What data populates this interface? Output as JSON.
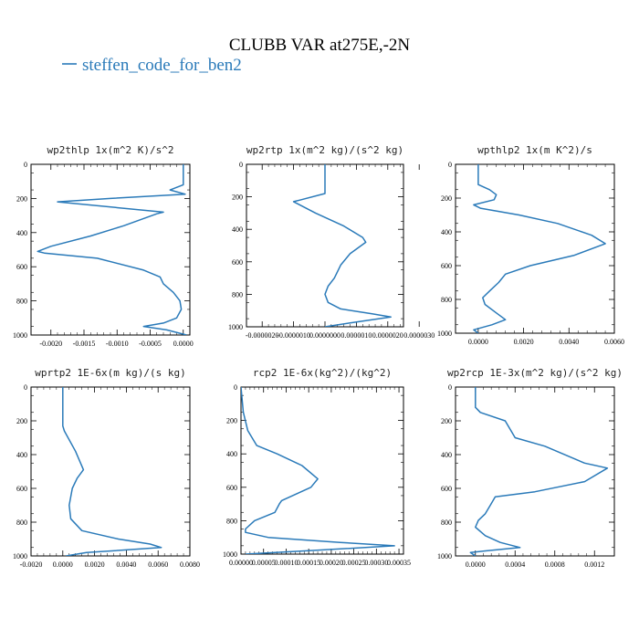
{
  "header": {
    "title": "CLUBB VAR at275E,-2N",
    "legend_label": "steffen_code_for_ben2",
    "legend_color": "#2a7ab9"
  },
  "style": {
    "line_color": "#2a7ab9",
    "axis_color": "#000000"
  },
  "chart_data": [
    {
      "type": "line",
      "title": "wp2thlp  1x(m^2 K)/s^2",
      "xlim": [
        -0.0023,
        0.0001
      ],
      "ylim": [
        1000,
        0
      ],
      "xticks": [
        -0.002,
        -0.0015,
        -0.001,
        -0.0005,
        0
      ],
      "xtick_labels": [
        "-0.0020",
        "-0.0015",
        "-0.0010",
        "-0.0005",
        "0.0000"
      ],
      "yticks": [
        0,
        200,
        400,
        600,
        800,
        1000
      ],
      "series": [
        {
          "x": [
            0,
            0,
            -0.0002,
            3e-05,
            -0.0011,
            -0.0019,
            -0.0003,
            -0.0004,
            -0.0009,
            -0.0014,
            -0.002,
            -0.0022,
            -0.0021,
            -0.0013,
            -0.0006,
            -0.00035,
            -0.0003,
            -0.00015,
            -5e-05,
            -3e-05,
            -0.0001,
            -0.0003,
            -0.0006,
            -0.00025,
            5e-05
          ],
          "y": [
            0,
            120,
            150,
            175,
            200,
            220,
            280,
            290,
            360,
            420,
            480,
            510,
            520,
            550,
            620,
            660,
            700,
            750,
            800,
            850,
            900,
            930,
            950,
            970,
            1000
          ]
        }
      ]
    },
    {
      "type": "line",
      "title": "wp2rtp  1x(m^2 kg)/(s^2 kg)",
      "xlim": [
        -2.5e-06,
        2.5e-06
      ],
      "ylim": [
        1000,
        0
      ],
      "xticks": [
        -2e-06,
        -1e-06,
        0,
        1e-06,
        2e-06,
        3e-06
      ],
      "xtick_labels": [
        "-0.0000020",
        "-0.0000010",
        "0.0000000",
        "0.0000010",
        "0.0000020",
        "0.0000030"
      ],
      "yticks": [
        0,
        200,
        400,
        600,
        800,
        1000
      ],
      "series": [
        {
          "x": [
            0,
            0,
            -8e-07,
            -1e-06,
            -3e-07,
            6e-07,
            1.2e-06,
            1.3e-06,
            8e-07,
            5e-07,
            3e-07,
            1e-07,
            0,
            1e-07,
            5e-07,
            1.5e-06,
            2.1e-06,
            1e-06,
            0
          ],
          "y": [
            0,
            180,
            220,
            230,
            300,
            380,
            450,
            480,
            550,
            620,
            700,
            750,
            800,
            850,
            890,
            920,
            940,
            970,
            1000
          ]
        }
      ]
    },
    {
      "type": "line",
      "title": "wpthlp2  1x(m K^2)/s",
      "xlim": [
        -0.001,
        0.006
      ],
      "ylim": [
        1000,
        0
      ],
      "xticks": [
        0,
        0.002,
        0.004,
        0.006
      ],
      "xtick_labels": [
        "0.0000",
        "0.0020",
        "0.0040",
        "0.0060"
      ],
      "yticks": [
        0,
        200,
        400,
        600,
        800,
        1000
      ],
      "series": [
        {
          "x": [
            0,
            0,
            0.0005,
            0.0008,
            0.0007,
            -0.0002,
            0.0001,
            0.0018,
            0.0035,
            0.005,
            0.0056,
            0.0042,
            0.0023,
            0.0012,
            0.0009,
            0.0005,
            0.0002,
            0.0003,
            0.0008,
            0.0012,
            0.0006,
            -0.0002,
            0
          ],
          "y": [
            0,
            120,
            150,
            180,
            210,
            240,
            260,
            300,
            350,
            420,
            470,
            540,
            600,
            650,
            700,
            750,
            790,
            830,
            880,
            920,
            950,
            980,
            1000
          ]
        }
      ]
    },
    {
      "type": "line",
      "title": "wprtp2  1E-6x(m kg)/(s kg)",
      "xlim": [
        -0.002,
        0.008
      ],
      "ylim": [
        1000,
        0
      ],
      "xticks": [
        -0.002,
        0,
        0.002,
        0.004,
        0.006,
        0.008
      ],
      "xtick_labels": [
        "-0.0020",
        "0.0000",
        "0.0020",
        "0.0040",
        "0.0060",
        "0.0080"
      ],
      "yticks": [
        0,
        200,
        400,
        600,
        800,
        1000
      ],
      "series": [
        {
          "x": [
            0,
            0,
            0.0001,
            0.0008,
            0.0013,
            0.0009,
            0.0006,
            0.0005,
            0.0004,
            0.0005,
            0.0012,
            0.0035,
            0.0055,
            0.0062,
            0.0015,
            0.0002
          ],
          "y": [
            0,
            230,
            260,
            380,
            490,
            540,
            600,
            650,
            700,
            780,
            850,
            900,
            930,
            950,
            980,
            1000
          ]
        }
      ]
    },
    {
      "type": "line",
      "title": "rcp2  1E-6x(kg^2)/(kg^2)",
      "xlim": [
        0,
        0.00036
      ],
      "ylim": [
        1000,
        0
      ],
      "xticks": [
        0,
        5e-05,
        0.0001,
        0.00015,
        0.0002,
        0.00025,
        0.0003,
        0.00035
      ],
      "xtick_labels": [
        "0.00000",
        "0.00005",
        "0.00010",
        "0.00015",
        "0.00020",
        "0.00025",
        "0.00030",
        "0.00035"
      ],
      "yticks": [
        0,
        200,
        400,
        600,
        800,
        1000
      ],
      "series": [
        {
          "x": [
            0,
            5e-06,
            1.5e-05,
            3.5e-05,
            8e-05,
            0.000135,
            0.00017,
            0.000155,
            9e-05,
            8.5e-05,
            7.5e-05,
            3e-05,
            1e-05,
            1e-05,
            6e-05,
            0.00022,
            0.00034,
            0.00015,
            1e-05
          ],
          "y": [
            0,
            150,
            260,
            350,
            400,
            470,
            550,
            600,
            680,
            700,
            750,
            800,
            850,
            870,
            900,
            930,
            950,
            980,
            1000
          ]
        }
      ]
    },
    {
      "type": "line",
      "title": "wp2rcp  1E-3x(m^2 kg)/(s^2 kg)",
      "xlim": [
        -0.0002,
        0.0014
      ],
      "ylim": [
        1000,
        0
      ],
      "xticks": [
        0,
        0.0004,
        0.0008,
        0.0012
      ],
      "xtick_labels": [
        "0.0000",
        "0.0004",
        "0.0008",
        "0.0012"
      ],
      "yticks": [
        0,
        200,
        400,
        600,
        800,
        1000
      ],
      "series": [
        {
          "x": [
            0,
            0,
            5e-05,
            0.0003,
            0.0004,
            0.0007,
            0.0011,
            0.00133,
            0.0011,
            0.0006,
            0.0002,
            0.00015,
            0.0001,
            3e-05,
            0,
            0.0001,
            0.00025,
            0.00045,
            0.0001,
            -5e-05,
            0
          ],
          "y": [
            0,
            120,
            150,
            200,
            300,
            350,
            450,
            480,
            560,
            620,
            650,
            700,
            750,
            790,
            830,
            880,
            920,
            950,
            970,
            980,
            1000
          ]
        }
      ]
    }
  ]
}
